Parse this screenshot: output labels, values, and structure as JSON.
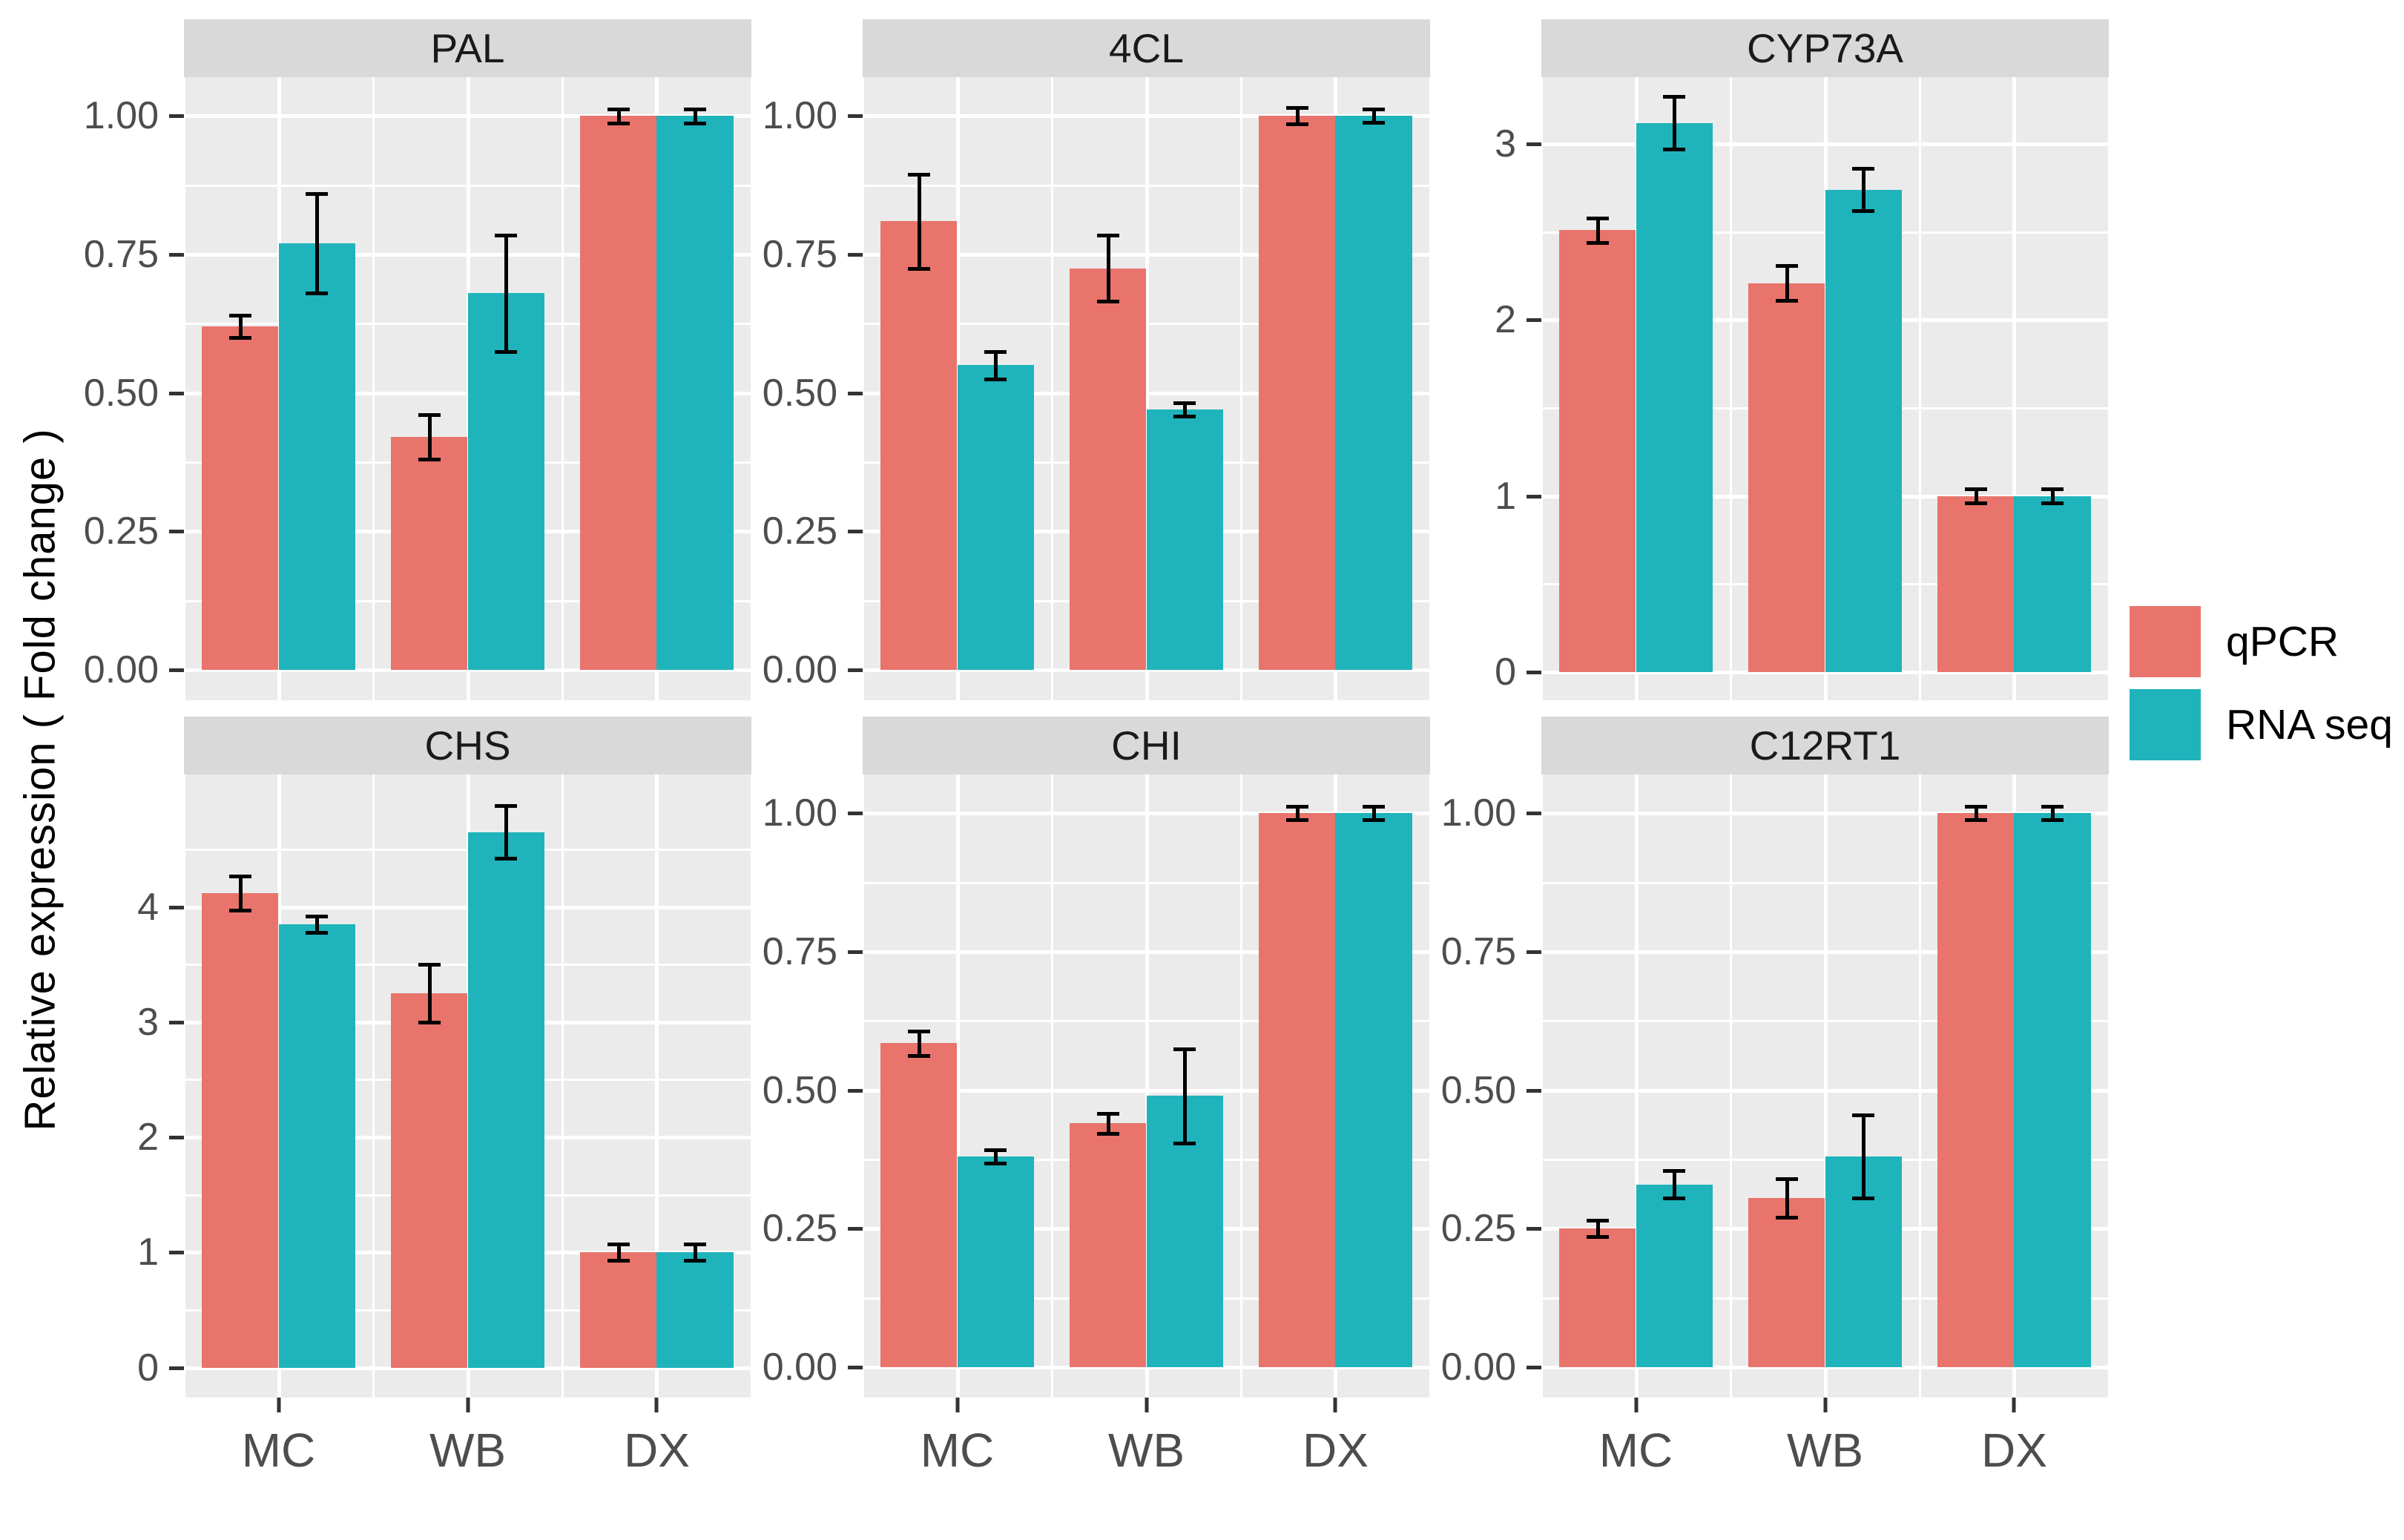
{
  "figure": {
    "background": "#ffffff"
  },
  "y_axis_title": "Relative expression ( Fold change )",
  "legend": {
    "items": [
      {
        "label": "qPCR",
        "color": "#e8746c"
      },
      {
        "label": "RNA seq",
        "color": "#1fb4bb"
      }
    ]
  },
  "style_colors": {
    "panel_background": "#ebebeb",
    "strip_background": "#d9d9d9",
    "gridline": "#ffffff",
    "tick_text": "#4d4d4d",
    "error_bar": "#000000"
  },
  "chart_data": {
    "type": "bar",
    "layout": "facet-grid 2 rows x 3 cols, grouped dodged bars with error bars, legend right",
    "categories": [
      "MC",
      "WB",
      "DX"
    ],
    "series_names": [
      "qPCR",
      "RNA seq"
    ],
    "facets": [
      {
        "title": "PAL",
        "ylim": [
          -0.055,
          1.07
        ],
        "tick_values": [
          0,
          0.25,
          0.5,
          0.75,
          1.0
        ],
        "tick_labels": [
          "0.00",
          "0.25",
          "0.50",
          "0.75",
          "1.00"
        ],
        "series": [
          {
            "name": "qPCR",
            "values": [
              0.62,
              0.42,
              1.0
            ],
            "errors": [
              0.02,
              0.04,
              0.013
            ]
          },
          {
            "name": "RNA seq",
            "values": [
              0.77,
              0.68,
              1.0
            ],
            "errors": [
              0.09,
              0.105,
              0.013
            ]
          }
        ]
      },
      {
        "title": "4CL",
        "ylim": [
          -0.055,
          1.07
        ],
        "tick_values": [
          0,
          0.25,
          0.5,
          0.75,
          1.0
        ],
        "tick_labels": [
          "0.00",
          "0.25",
          "0.50",
          "0.75",
          "1.00"
        ],
        "series": [
          {
            "name": "qPCR",
            "values": [
              0.81,
              0.725,
              1.0
            ],
            "errors": [
              0.085,
              0.06,
              0.015
            ]
          },
          {
            "name": "RNA seq",
            "values": [
              0.55,
              0.47,
              1.0
            ],
            "errors": [
              0.025,
              0.012,
              0.012
            ]
          }
        ]
      },
      {
        "title": "CYP73A",
        "ylim": [
          -0.16,
          3.38
        ],
        "tick_values": [
          0,
          1,
          2,
          3
        ],
        "tick_labels": [
          "0",
          "1",
          "2",
          "3"
        ],
        "series": [
          {
            "name": "qPCR",
            "values": [
              2.51,
              2.21,
              1.0
            ],
            "errors": [
              0.07,
              0.1,
              0.04
            ]
          },
          {
            "name": "RNA seq",
            "values": [
              3.12,
              2.74,
              1.0
            ],
            "errors": [
              0.15,
              0.12,
              0.04
            ]
          }
        ]
      },
      {
        "title": "CHS",
        "ylim": [
          -0.26,
          5.15
        ],
        "tick_values": [
          0,
          1,
          2,
          3,
          4
        ],
        "tick_labels": [
          "0",
          "1",
          "2",
          "3",
          "4"
        ],
        "series": [
          {
            "name": "qPCR",
            "values": [
              4.12,
              3.25,
              1.0
            ],
            "errors": [
              0.15,
              0.25,
              0.07
            ]
          },
          {
            "name": "RNA seq",
            "values": [
              3.85,
              4.65,
              1.0
            ],
            "errors": [
              0.07,
              0.23,
              0.07
            ]
          }
        ]
      },
      {
        "title": "CHI",
        "ylim": [
          -0.055,
          1.07
        ],
        "tick_values": [
          0,
          0.25,
          0.5,
          0.75,
          1.0
        ],
        "tick_labels": [
          "0.00",
          "0.25",
          "0.50",
          "0.75",
          "1.00"
        ],
        "series": [
          {
            "name": "qPCR",
            "values": [
              0.585,
              0.44,
              1.0
            ],
            "errors": [
              0.022,
              0.018,
              0.012
            ]
          },
          {
            "name": "RNA seq",
            "values": [
              0.38,
              0.49,
              1.0
            ],
            "errors": [
              0.012,
              0.085,
              0.012
            ]
          }
        ]
      },
      {
        "title": "C12RT1",
        "ylim": [
          -0.055,
          1.07
        ],
        "tick_values": [
          0,
          0.25,
          0.5,
          0.75,
          1.0
        ],
        "tick_labels": [
          "0.00",
          "0.25",
          "0.50",
          "0.75",
          "1.00"
        ],
        "series": [
          {
            "name": "qPCR",
            "values": [
              0.25,
              0.305,
              1.0
            ],
            "errors": [
              0.015,
              0.035,
              0.012
            ]
          },
          {
            "name": "RNA seq",
            "values": [
              0.33,
              0.38,
              1.0
            ],
            "errors": [
              0.025,
              0.075,
              0.012
            ]
          }
        ]
      }
    ],
    "x_gridline_major_pct": [
      16.667,
      50,
      83.333
    ],
    "x_gridline_minor_pct": [
      0,
      33.333,
      66.667,
      100
    ],
    "legend_position": "right"
  }
}
